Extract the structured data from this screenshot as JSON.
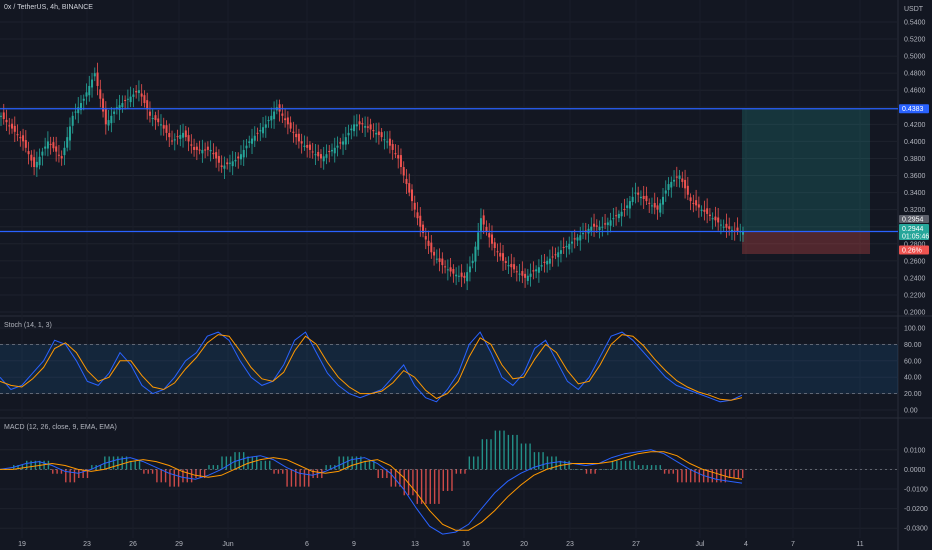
{
  "header": {
    "symbol": "0x / TetherUS, 4h, BINANCE"
  },
  "price_axis": {
    "unit": "USDT"
  },
  "stoch_title": "Stoch (14, 1, 3)",
  "macd_title": "MACD (12, 26, close, 9, EMA, EMA)",
  "tags": {
    "resistance": "0.4383",
    "price_upper": "0.2954",
    "price_current": "0.2944",
    "countdown": "01:05:46",
    "stop_pct": "0.26%"
  },
  "colors": {
    "up": "#26a69a",
    "down": "#ef5350",
    "line": "#2962ff",
    "orange": "#ff9800"
  },
  "chart_data": [
    {
      "type": "candlestick",
      "title": "0x / TetherUS, 4h, BINANCE",
      "ylabel": "USDT",
      "ylim": [
        0.2,
        0.54
      ],
      "y_ticks": [
        "0.5400",
        "0.5200",
        "0.5000",
        "0.4800",
        "0.4600",
        "0.4400",
        "0.4200",
        "0.4000",
        "0.3800",
        "0.3600",
        "0.3400",
        "0.3200",
        "0.3000",
        "0.2800",
        "0.2600",
        "0.2400",
        "0.2200",
        "0.2000"
      ],
      "x_ticks": [
        "19",
        "23",
        "26",
        "29",
        "Jun",
        "6",
        "9",
        "13",
        "16",
        "20",
        "23",
        "27",
        "Jul",
        "4",
        "7",
        "11"
      ],
      "path_points": [
        [
          0,
          0.43
        ],
        [
          8,
          0.4
        ],
        [
          12,
          0.37
        ],
        [
          17,
          0.4
        ],
        [
          22,
          0.38
        ],
        [
          26,
          0.43
        ],
        [
          30,
          0.45
        ],
        [
          34,
          0.48
        ],
        [
          38,
          0.42
        ],
        [
          42,
          0.44
        ],
        [
          46,
          0.45
        ],
        [
          50,
          0.46
        ],
        [
          54,
          0.43
        ],
        [
          58,
          0.42
        ],
        [
          62,
          0.4
        ],
        [
          66,
          0.41
        ],
        [
          70,
          0.39
        ],
        [
          76,
          0.39
        ],
        [
          80,
          0.37
        ],
        [
          86,
          0.38
        ],
        [
          90,
          0.4
        ],
        [
          96,
          0.42
        ],
        [
          100,
          0.44
        ],
        [
          104,
          0.42
        ],
        [
          108,
          0.4
        ],
        [
          112,
          0.39
        ],
        [
          116,
          0.38
        ],
        [
          120,
          0.39
        ],
        [
          124,
          0.4
        ],
        [
          128,
          0.42
        ],
        [
          131,
          0.42
        ],
        [
          136,
          0.41
        ],
        [
          140,
          0.4
        ],
        [
          144,
          0.38
        ],
        [
          148,
          0.34
        ],
        [
          152,
          0.3
        ],
        [
          156,
          0.27
        ],
        [
          160,
          0.255
        ],
        [
          164,
          0.245
        ],
        [
          168,
          0.24
        ],
        [
          171,
          0.26
        ],
        [
          174,
          0.31
        ],
        [
          178,
          0.28
        ],
        [
          182,
          0.26
        ],
        [
          186,
          0.25
        ],
        [
          190,
          0.24
        ],
        [
          194,
          0.25
        ],
        [
          198,
          0.26
        ],
        [
          202,
          0.27
        ],
        [
          206,
          0.28
        ],
        [
          210,
          0.29
        ],
        [
          214,
          0.3
        ],
        [
          218,
          0.3
        ],
        [
          222,
          0.31
        ],
        [
          226,
          0.32
        ],
        [
          230,
          0.34
        ],
        [
          234,
          0.33
        ],
        [
          238,
          0.32
        ],
        [
          242,
          0.35
        ],
        [
          246,
          0.36
        ],
        [
          250,
          0.33
        ],
        [
          254,
          0.32
        ],
        [
          258,
          0.31
        ],
        [
          262,
          0.3
        ],
        [
          266,
          0.295
        ],
        [
          269,
          0.2944
        ]
      ],
      "overlays": [
        {
          "name": "resistance",
          "value": 0.4383
        },
        {
          "name": "support",
          "value": 0.2944
        }
      ],
      "position": {
        "entry": 0.2944,
        "target": 0.4383,
        "stop": 0.268
      }
    },
    {
      "type": "line",
      "title": "Stoch (14, 1, 3)",
      "ylim": [
        0,
        100
      ],
      "y_ticks": [
        "100.00",
        "80.00",
        "60.00",
        "40.00",
        "20.00",
        "0.00"
      ],
      "bands": [
        20,
        80
      ],
      "series": [
        {
          "values": [
            40,
            25,
            30,
            45,
            60,
            85,
            80,
            60,
            35,
            30,
            45,
            70,
            55,
            30,
            20,
            25,
            40,
            60,
            70,
            90,
            95,
            85,
            60,
            40,
            30,
            35,
            55,
            85,
            95,
            70,
            45,
            30,
            20,
            15,
            20,
            25,
            40,
            55,
            30,
            15,
            10,
            25,
            45,
            80,
            95,
            70,
            40,
            30,
            45,
            75,
            85,
            60,
            35,
            25,
            40,
            65,
            90,
            95,
            85,
            70,
            55,
            40,
            30,
            25,
            20,
            15,
            10,
            12,
            18
          ]
        },
        {
          "values": [
            35,
            30,
            28,
            38,
            52,
            75,
            82,
            70,
            48,
            35,
            40,
            60,
            60,
            42,
            28,
            25,
            33,
            50,
            64,
            82,
            92,
            90,
            72,
            52,
            38,
            35,
            46,
            72,
            90,
            80,
            58,
            40,
            28,
            20,
            20,
            23,
            33,
            48,
            40,
            24,
            14,
            20,
            35,
            65,
            88,
            80,
            55,
            38,
            40,
            62,
            80,
            70,
            48,
            32,
            35,
            55,
            80,
            92,
            90,
            78,
            62,
            48,
            36,
            28,
            22,
            18,
            13,
            12,
            15
          ]
        }
      ]
    },
    {
      "type": "line",
      "title": "MACD (12, 26, close, 9, EMA, EMA)",
      "ylim": [
        -0.035,
        0.015
      ],
      "y_ticks": [
        "0.0100",
        "0.0000",
        "-0.0100",
        "-0.0200",
        "-0.0300"
      ],
      "series": [
        {
          "values": [
            0.0,
            0.001,
            0.003,
            0.004,
            0.002,
            -0.001,
            -0.002,
            0.0,
            0.003,
            0.005,
            0.006,
            0.004,
            0.001,
            -0.002,
            -0.004,
            -0.005,
            -0.003,
            0.0,
            0.004,
            0.006,
            0.007,
            0.005,
            0.001,
            -0.002,
            -0.003,
            -0.001,
            0.002,
            0.005,
            0.006,
            0.003,
            -0.002,
            -0.01,
            -0.02,
            -0.029,
            -0.033,
            -0.032,
            -0.028,
            -0.02,
            -0.012,
            -0.006,
            -0.002,
            0.001,
            0.003,
            0.004,
            0.003,
            0.002,
            0.003,
            0.006,
            0.008,
            0.009,
            0.01,
            0.008,
            0.004,
            0.0,
            -0.003,
            -0.005,
            -0.006,
            -0.007
          ]
        },
        {
          "values": [
            0.0,
            0.0,
            0.001,
            0.002,
            0.003,
            0.002,
            0.0,
            -0.001,
            0.0,
            0.002,
            0.004,
            0.005,
            0.004,
            0.002,
            -0.001,
            -0.003,
            -0.004,
            -0.003,
            0.0,
            0.003,
            0.005,
            0.006,
            0.005,
            0.002,
            -0.001,
            -0.002,
            -0.001,
            0.002,
            0.004,
            0.005,
            0.002,
            -0.004,
            -0.012,
            -0.021,
            -0.028,
            -0.031,
            -0.031,
            -0.027,
            -0.021,
            -0.014,
            -0.008,
            -0.003,
            0.0,
            0.002,
            0.003,
            0.003,
            0.003,
            0.004,
            0.006,
            0.008,
            0.009,
            0.009,
            0.007,
            0.003,
            0.0,
            -0.002,
            -0.004,
            -0.005
          ]
        }
      ]
    }
  ]
}
